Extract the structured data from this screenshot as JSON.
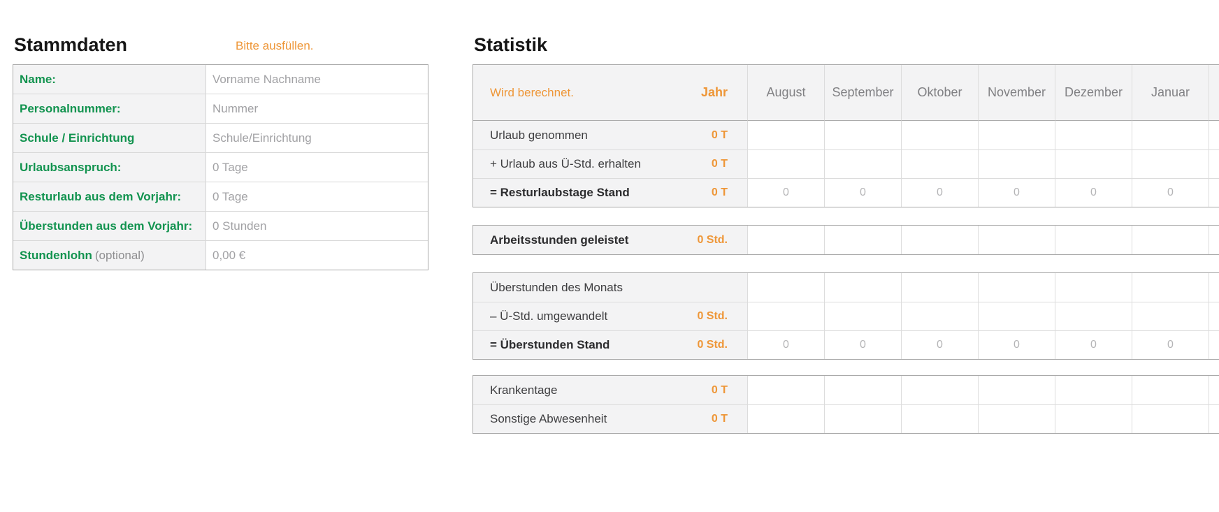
{
  "colors": {
    "accent_green": "#12934f",
    "accent_orange": "#ee9637",
    "label_cell_bg": "#f3f3f4",
    "grid_line": "#dcdcdc",
    "outer_border": "#a9a9a9",
    "ghost_value": "#b5b5b7"
  },
  "stammdaten": {
    "title": "Stammdaten",
    "hint": "Bitte ausfüllen.",
    "rows": [
      {
        "label": "Name:",
        "suffix": "",
        "value": "Vorname Nachname"
      },
      {
        "label": "Personalnummer:",
        "suffix": "",
        "value": "Nummer"
      },
      {
        "label": "Schule / Einrichtung",
        "suffix": "",
        "value": "Schule/Einrichtung"
      },
      {
        "label": "Urlaubsanspruch:",
        "suffix": "",
        "value": "0 Tage"
      },
      {
        "label": "Resturlaub aus dem Vorjahr:",
        "suffix": "",
        "value": "0 Tage"
      },
      {
        "label": "Überstunden aus dem Vorjahr:",
        "suffix": "",
        "value": "0 Stunden"
      },
      {
        "label": "Stundenlohn",
        "suffix": "(optional)",
        "value": "0,00 €"
      }
    ]
  },
  "statistik": {
    "title": "Statistik",
    "hint": "Wird berechnet.",
    "year_header": "Jahr",
    "months": [
      "August",
      "September",
      "Oktober",
      "November",
      "Dezember",
      "Januar"
    ],
    "blocks": [
      {
        "rows": [
          {
            "label": "Urlaub genommen",
            "bold": false,
            "year_value": "0 T",
            "month_values": [
              "",
              "",
              "",
              "",
              "",
              ""
            ]
          },
          {
            "label": "+ Urlaub aus Ü-Std. erhalten",
            "bold": false,
            "year_value": "0 T",
            "month_values": [
              "",
              "",
              "",
              "",
              "",
              ""
            ]
          },
          {
            "label": "= Resturlaubstage Stand",
            "bold": true,
            "year_value": "0 T",
            "month_values": [
              "0",
              "0",
              "0",
              "0",
              "0",
              "0"
            ]
          }
        ]
      },
      {
        "rows": [
          {
            "label": "Arbeitsstunden geleistet",
            "bold": true,
            "year_value": "0 Std.",
            "month_values": [
              "",
              "",
              "",
              "",
              "",
              ""
            ]
          }
        ]
      },
      {
        "rows": [
          {
            "label": "Überstunden des Monats",
            "bold": false,
            "year_value": "",
            "month_values": [
              "",
              "",
              "",
              "",
              "",
              ""
            ]
          },
          {
            "label": "– Ü-Std. umgewandelt",
            "bold": false,
            "year_value": "0 Std.",
            "month_values": [
              "",
              "",
              "",
              "",
              "",
              ""
            ]
          },
          {
            "label": "= Überstunden Stand",
            "bold": true,
            "year_value": "0 Std.",
            "month_values": [
              "0",
              "0",
              "0",
              "0",
              "0",
              "0"
            ]
          }
        ]
      },
      {
        "rows": [
          {
            "label": "Krankentage",
            "bold": false,
            "year_value": "0 T",
            "month_values": [
              "",
              "",
              "",
              "",
              "",
              ""
            ]
          },
          {
            "label": "Sonstige Abwesenheit",
            "bold": false,
            "year_value": "0 T",
            "month_values": [
              "",
              "",
              "",
              "",
              "",
              ""
            ]
          }
        ]
      }
    ]
  }
}
